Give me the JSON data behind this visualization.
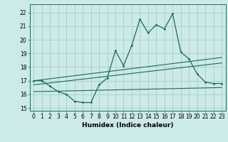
{
  "title": "",
  "xlabel": "Humidex (Indice chaleur)",
  "background_color": "#cceae7",
  "grid_color": "#aacccc",
  "line_color": "#1a6b5e",
  "xlim": [
    -0.5,
    23.5
  ],
  "ylim": [
    14.8,
    22.6
  ],
  "yticks": [
    15,
    16,
    17,
    18,
    19,
    20,
    21,
    22
  ],
  "xticks": [
    0,
    1,
    2,
    3,
    4,
    5,
    6,
    7,
    8,
    9,
    10,
    11,
    12,
    13,
    14,
    15,
    16,
    17,
    18,
    19,
    20,
    21,
    22,
    23
  ],
  "main_series": [
    [
      0,
      17.0
    ],
    [
      1,
      17.0
    ],
    [
      2,
      16.6
    ],
    [
      3,
      16.2
    ],
    [
      4,
      16.0
    ],
    [
      5,
      15.5
    ],
    [
      6,
      15.4
    ],
    [
      7,
      15.4
    ],
    [
      8,
      16.7
    ],
    [
      9,
      17.2
    ],
    [
      10,
      19.2
    ],
    [
      11,
      18.1
    ],
    [
      12,
      19.6
    ],
    [
      13,
      21.5
    ],
    [
      14,
      20.5
    ],
    [
      15,
      21.1
    ],
    [
      16,
      20.8
    ],
    [
      17,
      21.9
    ],
    [
      18,
      19.1
    ],
    [
      19,
      18.6
    ],
    [
      20,
      17.5
    ],
    [
      21,
      16.9
    ],
    [
      22,
      16.8
    ],
    [
      23,
      16.8
    ]
  ],
  "line1": [
    [
      0,
      17.0
    ],
    [
      23,
      18.7
    ]
  ],
  "line2": [
    [
      0,
      16.7
    ],
    [
      23,
      18.3
    ]
  ],
  "line3": [
    [
      0,
      16.2
    ],
    [
      23,
      16.5
    ]
  ],
  "label_fontsize": 5.5,
  "xlabel_fontsize": 6.5
}
